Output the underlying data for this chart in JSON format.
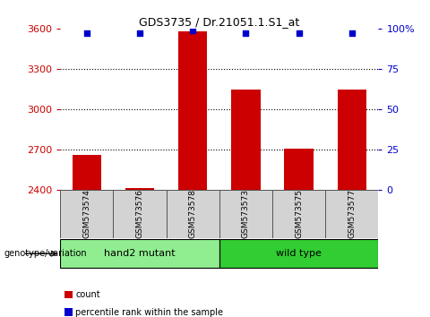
{
  "title": "GDS3735 / Dr.21051.1.S1_at",
  "samples": [
    "GSM573574",
    "GSM573576",
    "GSM573578",
    "GSM573573",
    "GSM573575",
    "GSM573577"
  ],
  "counts": [
    2665,
    2415,
    3580,
    3150,
    2710,
    3150
  ],
  "percentiles": [
    97,
    97,
    99,
    97,
    97,
    97
  ],
  "ylim_left": [
    2400,
    3600
  ],
  "ylim_right": [
    0,
    100
  ],
  "yticks_left": [
    2400,
    2700,
    3000,
    3300,
    3600
  ],
  "yticks_right": [
    0,
    25,
    50,
    75,
    100
  ],
  "bar_color": "#cc0000",
  "marker_color": "#0000cc",
  "bar_width": 0.55,
  "groups": [
    {
      "label": "hand2 mutant",
      "indices": [
        0,
        1,
        2
      ],
      "color": "#90ee90"
    },
    {
      "label": "wild type",
      "indices": [
        3,
        4,
        5
      ],
      "color": "#32cd32"
    }
  ],
  "group_label": "genotype/variation",
  "legend_count_color": "#cc0000",
  "legend_pct_color": "#0000cc",
  "legend_count_label": "count",
  "legend_pct_label": "percentile rank within the sample",
  "grid_color": "black",
  "tick_color_left": "#cc0000",
  "tick_color_right": "#0000cc",
  "baseline": 2400,
  "cell_bg": "#d3d3d3",
  "cell_edge": "#555555"
}
